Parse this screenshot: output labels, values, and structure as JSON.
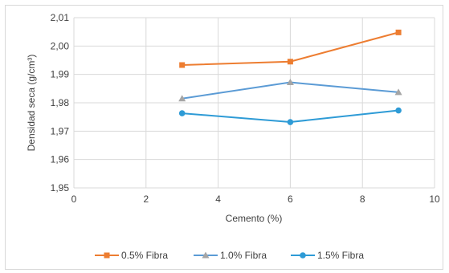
{
  "chart_data": {
    "type": "line",
    "title": "",
    "xlabel": "Cemento  (%)",
    "ylabel": "Densidad seca (g/cm³)",
    "xlim": [
      0,
      10
    ],
    "ylim": [
      1.95,
      2.01
    ],
    "xticks": [
      "0",
      "2",
      "4",
      "6",
      "8",
      "10"
    ],
    "yticks": [
      "1,95",
      "1,96",
      "1,97",
      "1,98",
      "1,99",
      "2,00",
      "2,01"
    ],
    "grid": true,
    "legend_position": "bottom",
    "series": [
      {
        "name": "0.5% Fibra",
        "marker": "square",
        "color": "#ED7D31",
        "x": [
          3,
          6,
          9
        ],
        "y": [
          1.9933,
          1.9945,
          2.0048
        ]
      },
      {
        "name": "1.0% Fibra",
        "marker": "triangle",
        "color": "#A5A5A5",
        "line_color": "#5B9BD5",
        "x": [
          3,
          6,
          9
        ],
        "y": [
          1.9815,
          1.9872,
          1.9837
        ]
      },
      {
        "name": "1.5% Fibra",
        "marker": "circle",
        "color": "#2E9BD6",
        "x": [
          3,
          6,
          9
        ],
        "y": [
          1.9763,
          1.9732,
          1.9773
        ]
      }
    ]
  }
}
